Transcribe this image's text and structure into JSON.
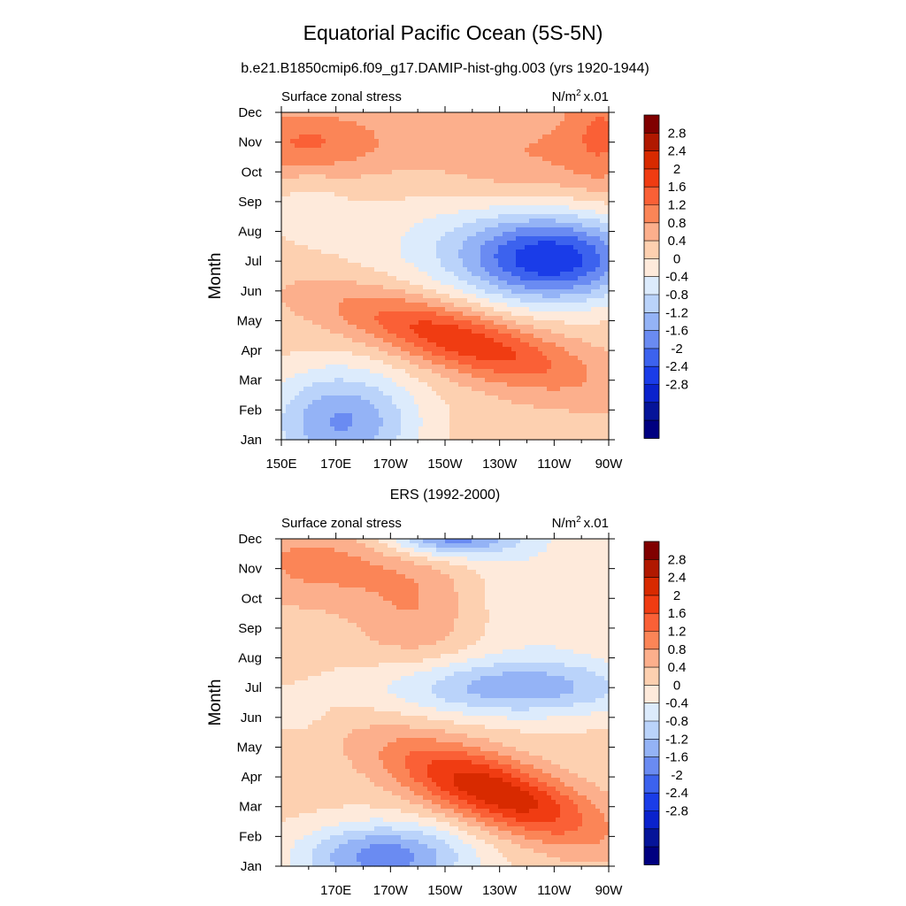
{
  "title": "Equatorial Pacific Ocean (5S-5N)",
  "colorbar_levels": [
    "2.8",
    "2.4",
    "2",
    "1.6",
    "1.2",
    "0.8",
    "0.4",
    "0",
    "-0.4",
    "-0.8",
    "-1.2",
    "-1.6",
    "-2",
    "-2.4",
    "-2.8"
  ],
  "colorbar_colors": [
    "#800000",
    "#b01800",
    "#d82a00",
    "#f03c12",
    "#fa6036",
    "#fb8557",
    "#fcaf8c",
    "#fdd0b0",
    "#feeadb",
    "#dcebfc",
    "#bad3fa",
    "#94b3f6",
    "#6a8bf2",
    "#3c62ee",
    "#1a3ce8",
    "#0a22cc",
    "#051499",
    "#000080"
  ],
  "chart_data": [
    {
      "type": "heatmap",
      "subtitle": "b.e21.B1850cmip6.f09_g17.DAMIP-hist-ghg.003 (yrs 1920-1944)",
      "left_label": "Surface zonal stress",
      "unit_label": "N/m",
      "unit_sup": "2",
      "unit_scale": "x.01",
      "ylabel": "Month",
      "y_ticks": [
        "Dec",
        "Nov",
        "Oct",
        "Sep",
        "Aug",
        "Jul",
        "Jun",
        "May",
        "Apr",
        "Mar",
        "Feb",
        "Jan"
      ],
      "x_ticks": [
        "150E",
        "170E",
        "170W",
        "150W",
        "130W",
        "110W",
        "90W"
      ],
      "x_range": [
        150,
        270
      ],
      "grid": false,
      "legend": "right colorbar",
      "features": [
        {
          "kind": "positive",
          "center_lon": 210,
          "center_month": 4.5,
          "max": 1.6
        },
        {
          "kind": "negative",
          "center_lon": 250,
          "center_month": 7.0,
          "min": -2.0
        },
        {
          "kind": "negative",
          "center_lon": 175,
          "center_month": 1.5,
          "min": -1.6
        },
        {
          "kind": "positive",
          "center_lon": 160,
          "center_month": 11.0,
          "max": 1.2
        }
      ]
    },
    {
      "type": "heatmap",
      "subtitle": "ERS (1992-2000)",
      "left_label": "Surface zonal stress",
      "unit_label": "N/m",
      "unit_sup": "2",
      "unit_scale": "x.01",
      "ylabel": "Month",
      "y_ticks": [
        "Dec",
        "Nov",
        "Oct",
        "Sep",
        "Aug",
        "Jul",
        "Jun",
        "May",
        "Apr",
        "Mar",
        "Feb",
        "Jan"
      ],
      "x_ticks": [
        "170E",
        "170W",
        "150W",
        "130W",
        "110W",
        "90W"
      ],
      "x_range": [
        150,
        270
      ],
      "grid": false,
      "legend": "right colorbar",
      "features": [
        {
          "kind": "positive",
          "center_lon": 230,
          "center_month": 3.5,
          "max": 2.0
        },
        {
          "kind": "negative",
          "center_lon": 240,
          "center_month": 7.0,
          "min": -1.6
        },
        {
          "kind": "negative",
          "center_lon": 210,
          "center_month": 12.0,
          "min": -2.0
        },
        {
          "kind": "negative",
          "center_lon": 190,
          "center_month": 1.2,
          "min": -2.0
        }
      ]
    }
  ]
}
